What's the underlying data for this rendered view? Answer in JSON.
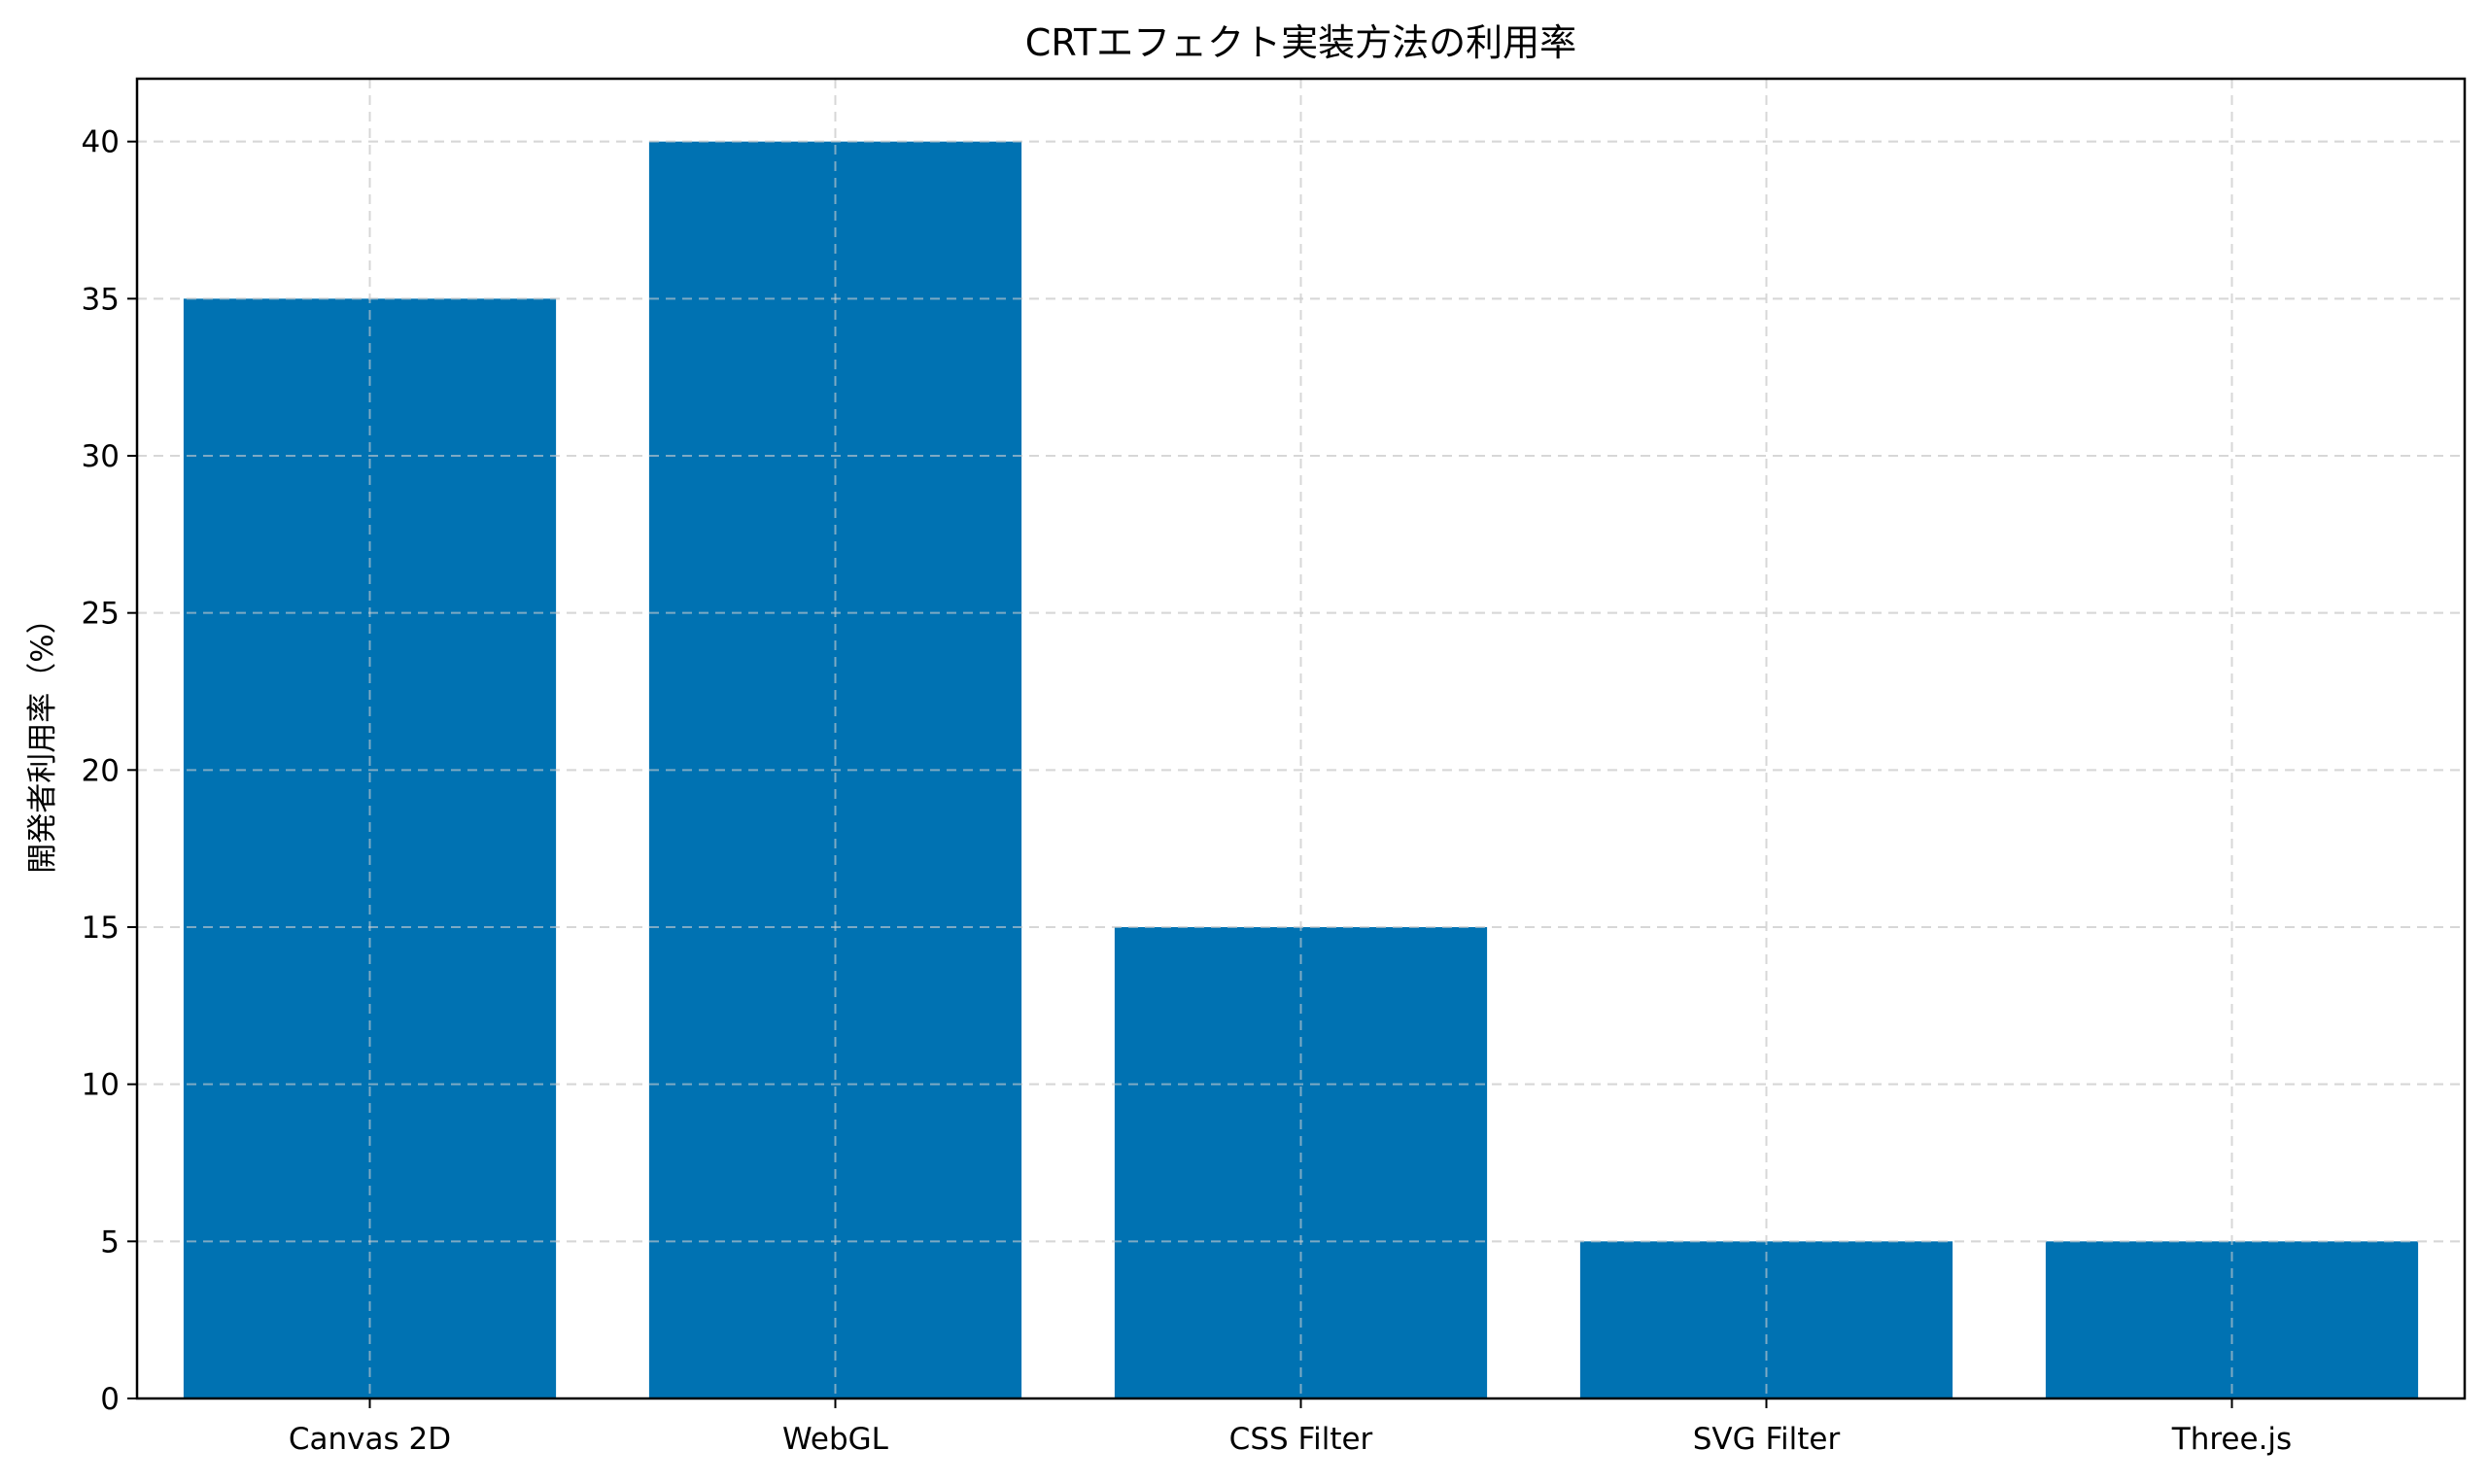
{
  "chart_data": {
    "type": "bar",
    "title": "CRTエフェクト実装方法の利用率",
    "xlabel": "",
    "ylabel": "開発者利用率（%）",
    "categories": [
      "Canvas 2D",
      "WebGL",
      "CSS Filter",
      "SVG Filter",
      "Three.js"
    ],
    "values": [
      35,
      40,
      15,
      5,
      5
    ],
    "ylim": [
      0,
      42
    ],
    "yticks": [
      0,
      5,
      10,
      15,
      20,
      25,
      30,
      35,
      40
    ],
    "grid": true,
    "bar_color": "#0072b2"
  }
}
